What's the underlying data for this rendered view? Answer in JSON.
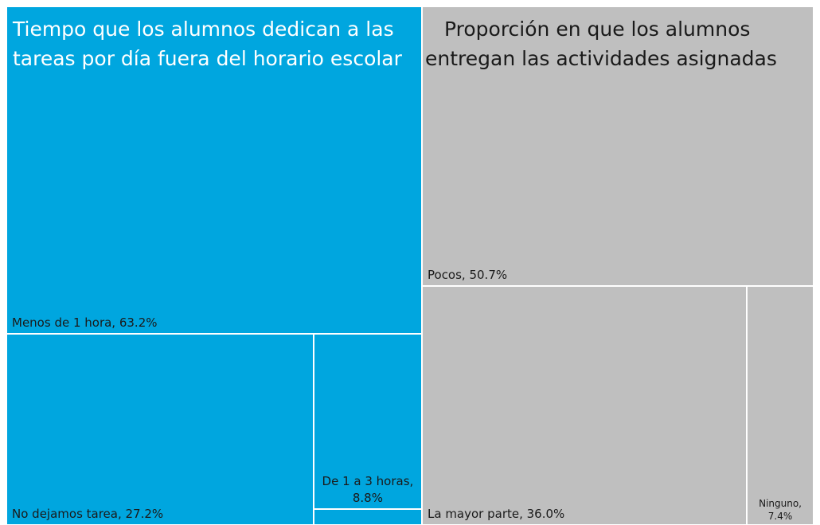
{
  "chart_data": {
    "type": "treemap",
    "groups": [
      {
        "title": "Tiempo que los alumnos dedican a las tareas por día fuera del horario escolar",
        "color": "#00a6df",
        "title_color": "#ffffff",
        "categories": [
          "Menos de 1 hora",
          "No dejamos tarea",
          "De 1 a 3 horas",
          null
        ],
        "values": [
          63.2,
          27.2,
          8.8,
          0.8
        ],
        "value_labels": [
          "Menos de 1 hora, 63.2%",
          "No dejamos tarea, 27.2%",
          "De 1 a 3 horas, 8.8%",
          null
        ]
      },
      {
        "title": "Proporción en que los alumnos entregan las actividades asignadas",
        "color": "#bfbfbf",
        "title_color": "#1a1a1a",
        "categories": [
          "Pocos",
          "La mayor parte",
          "Ninguno"
        ],
        "values": [
          50.7,
          36.0,
          7.4
        ],
        "value_labels": [
          "Pocos, 50.7%",
          "La mayor parte, 36.0%",
          "Ninguno, 7.4%"
        ]
      }
    ]
  }
}
